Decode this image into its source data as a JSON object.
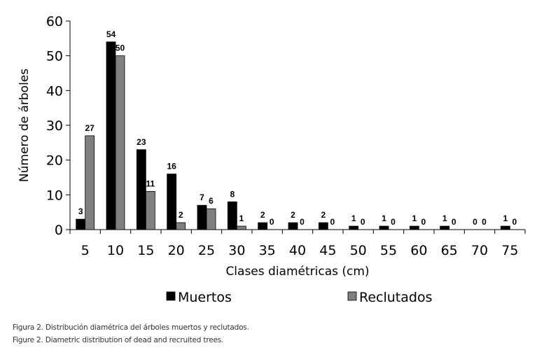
{
  "chart_data": {
    "type": "bar",
    "categories": [
      "5",
      "10",
      "15",
      "20",
      "25",
      "30",
      "35",
      "40",
      "45",
      "50",
      "55",
      "60",
      "65",
      "70",
      "75"
    ],
    "series": [
      {
        "name": "Muertos",
        "values": [
          3,
          54,
          23,
          16,
          7,
          8,
          2,
          2,
          2,
          1,
          1,
          1,
          1,
          0,
          1
        ],
        "color": "#000000"
      },
      {
        "name": "Reclutados",
        "values": [
          27,
          50,
          11,
          2,
          6,
          1,
          0,
          0,
          0,
          0,
          0,
          0,
          0,
          0,
          0
        ],
        "color": "#808080"
      }
    ],
    "xlabel": "Clases diamétricas (cm)",
    "ylabel": "Número de  árboles",
    "ylim": [
      0,
      60
    ],
    "yticks": [
      "0",
      "10",
      "20",
      "30",
      "40",
      "50",
      "60"
    ],
    "grid": false,
    "legend": "bottom"
  },
  "captions": {
    "es": "Figura 2. Distribución diamétrica del árboles muertos y reclutados.",
    "en": "Figure 2. Diametric distribution of dead and recruited trees."
  }
}
